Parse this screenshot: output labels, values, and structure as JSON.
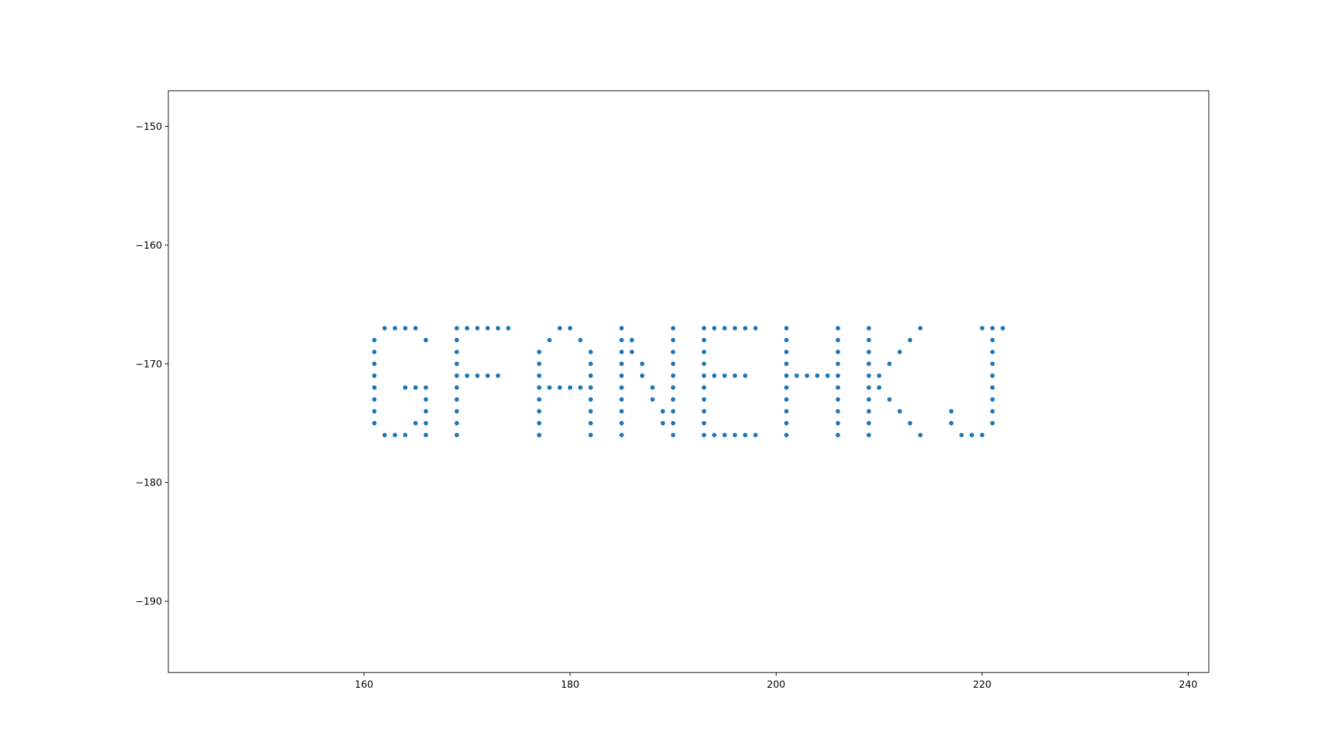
{
  "chart_data": {
    "type": "scatter",
    "title": "",
    "xlabel": "",
    "ylabel": "",
    "xlim": [
      141,
      242
    ],
    "ylim": [
      -196,
      -147
    ],
    "xticks": [
      160,
      180,
      200,
      220,
      240
    ],
    "yticks": [
      -150,
      -160,
      -170,
      -180,
      -190
    ],
    "xtick_labels": [
      "160",
      "180",
      "200",
      "220",
      "240"
    ],
    "ytick_labels": [
      "−150",
      "−160",
      "−170",
      "−180",
      "−190"
    ],
    "grid": false,
    "marker_color": "#1f77b4",
    "series": [
      {
        "points": [
          [
            162,
            -167
          ],
          [
            163,
            -167
          ],
          [
            164,
            -167
          ],
          [
            165,
            -167
          ],
          [
            166,
            -168
          ],
          [
            161,
            -168
          ],
          [
            161,
            -169
          ],
          [
            161,
            -170
          ],
          [
            161,
            -171
          ],
          [
            161,
            -172
          ],
          [
            161,
            -173
          ],
          [
            161,
            -174
          ],
          [
            161,
            -175
          ],
          [
            162,
            -176
          ],
          [
            163,
            -176
          ],
          [
            164,
            -176
          ],
          [
            166,
            -176
          ],
          [
            165,
            -175
          ],
          [
            166,
            -175
          ],
          [
            166,
            -174
          ],
          [
            166,
            -173
          ],
          [
            166,
            -172
          ],
          [
            165,
            -172
          ],
          [
            164,
            -172
          ],
          [
            169,
            -167
          ],
          [
            170,
            -167
          ],
          [
            171,
            -167
          ],
          [
            172,
            -167
          ],
          [
            173,
            -167
          ],
          [
            174,
            -167
          ],
          [
            169,
            -168
          ],
          [
            169,
            -169
          ],
          [
            169,
            -170
          ],
          [
            169,
            -171
          ],
          [
            170,
            -171
          ],
          [
            171,
            -171
          ],
          [
            172,
            -171
          ],
          [
            173,
            -171
          ],
          [
            169,
            -172
          ],
          [
            169,
            -173
          ],
          [
            169,
            -174
          ],
          [
            169,
            -175
          ],
          [
            169,
            -176
          ],
          [
            179,
            -167
          ],
          [
            180,
            -167
          ],
          [
            178,
            -168
          ],
          [
            181,
            -168
          ],
          [
            177,
            -169
          ],
          [
            182,
            -169
          ],
          [
            177,
            -170
          ],
          [
            182,
            -170
          ],
          [
            177,
            -171
          ],
          [
            182,
            -171
          ],
          [
            177,
            -172
          ],
          [
            178,
            -172
          ],
          [
            179,
            -172
          ],
          [
            180,
            -172
          ],
          [
            181,
            -172
          ],
          [
            182,
            -172
          ],
          [
            177,
            -173
          ],
          [
            182,
            -173
          ],
          [
            177,
            -174
          ],
          [
            182,
            -174
          ],
          [
            177,
            -175
          ],
          [
            182,
            -175
          ],
          [
            177,
            -176
          ],
          [
            182,
            -176
          ],
          [
            185,
            -167
          ],
          [
            185,
            -168
          ],
          [
            185,
            -169
          ],
          [
            185,
            -170
          ],
          [
            185,
            -171
          ],
          [
            185,
            -172
          ],
          [
            185,
            -173
          ],
          [
            185,
            -174
          ],
          [
            185,
            -175
          ],
          [
            185,
            -176
          ],
          [
            186,
            -168
          ],
          [
            186,
            -169
          ],
          [
            187,
            -170
          ],
          [
            187,
            -171
          ],
          [
            188,
            -172
          ],
          [
            188,
            -173
          ],
          [
            189,
            -174
          ],
          [
            189,
            -175
          ],
          [
            190,
            -167
          ],
          [
            190,
            -168
          ],
          [
            190,
            -169
          ],
          [
            190,
            -170
          ],
          [
            190,
            -171
          ],
          [
            190,
            -172
          ],
          [
            190,
            -173
          ],
          [
            190,
            -174
          ],
          [
            190,
            -175
          ],
          [
            190,
            -176
          ],
          [
            193,
            -167
          ],
          [
            194,
            -167
          ],
          [
            195,
            -167
          ],
          [
            196,
            -167
          ],
          [
            197,
            -167
          ],
          [
            198,
            -167
          ],
          [
            193,
            -168
          ],
          [
            193,
            -169
          ],
          [
            193,
            -170
          ],
          [
            193,
            -171
          ],
          [
            194,
            -171
          ],
          [
            195,
            -171
          ],
          [
            196,
            -171
          ],
          [
            197,
            -171
          ],
          [
            193,
            -172
          ],
          [
            193,
            -173
          ],
          [
            193,
            -174
          ],
          [
            193,
            -175
          ],
          [
            193,
            -176
          ],
          [
            194,
            -176
          ],
          [
            195,
            -176
          ],
          [
            196,
            -176
          ],
          [
            197,
            -176
          ],
          [
            198,
            -176
          ],
          [
            201,
            -167
          ],
          [
            201,
            -168
          ],
          [
            201,
            -169
          ],
          [
            201,
            -170
          ],
          [
            201,
            -171
          ],
          [
            201,
            -172
          ],
          [
            201,
            -173
          ],
          [
            201,
            -174
          ],
          [
            201,
            -175
          ],
          [
            201,
            -176
          ],
          [
            202,
            -171
          ],
          [
            203,
            -171
          ],
          [
            204,
            -171
          ],
          [
            205,
            -171
          ],
          [
            206,
            -167
          ],
          [
            206,
            -168
          ],
          [
            206,
            -169
          ],
          [
            206,
            -170
          ],
          [
            206,
            -171
          ],
          [
            206,
            -172
          ],
          [
            206,
            -173
          ],
          [
            206,
            -174
          ],
          [
            206,
            -175
          ],
          [
            206,
            -176
          ],
          [
            209,
            -167
          ],
          [
            209,
            -168
          ],
          [
            209,
            -169
          ],
          [
            209,
            -170
          ],
          [
            209,
            -171
          ],
          [
            209,
            -172
          ],
          [
            209,
            -173
          ],
          [
            209,
            -174
          ],
          [
            209,
            -175
          ],
          [
            209,
            -176
          ],
          [
            214,
            -167
          ],
          [
            213,
            -168
          ],
          [
            212,
            -169
          ],
          [
            211,
            -170
          ],
          [
            210,
            -171
          ],
          [
            210,
            -172
          ],
          [
            211,
            -173
          ],
          [
            212,
            -174
          ],
          [
            213,
            -175
          ],
          [
            214,
            -176
          ],
          [
            220,
            -167
          ],
          [
            221,
            -167
          ],
          [
            222,
            -167
          ],
          [
            221,
            -168
          ],
          [
            221,
            -169
          ],
          [
            221,
            -170
          ],
          [
            221,
            -171
          ],
          [
            221,
            -172
          ],
          [
            221,
            -173
          ],
          [
            221,
            -174
          ],
          [
            221,
            -175
          ],
          [
            217,
            -174
          ],
          [
            217,
            -175
          ],
          [
            218,
            -176
          ],
          [
            219,
            -176
          ],
          [
            220,
            -176
          ]
        ]
      }
    ]
  }
}
